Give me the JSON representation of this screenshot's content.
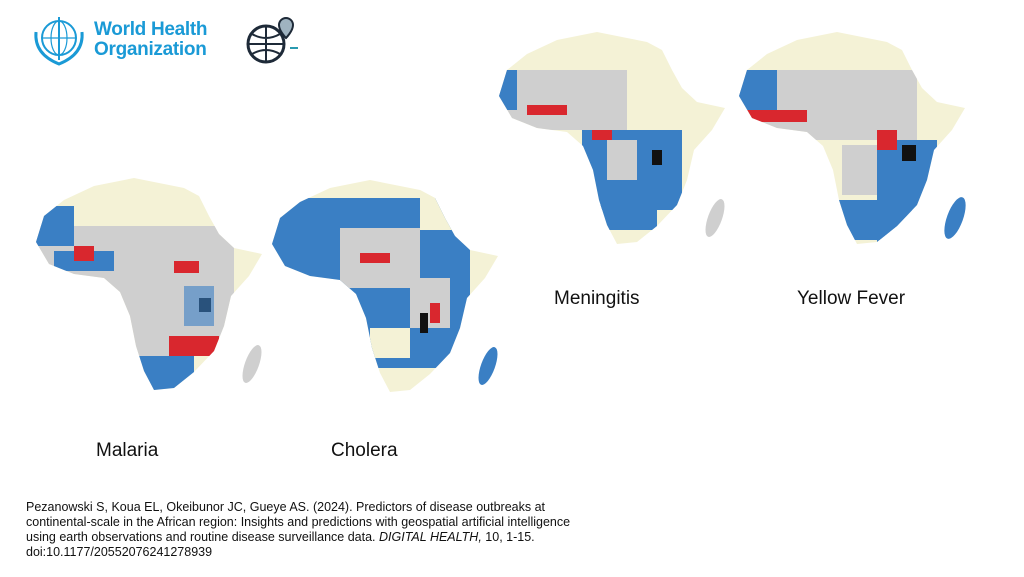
{
  "logos": {
    "who": {
      "line1": "World Health",
      "line2": "Organization",
      "color": "#1a9ad6"
    },
    "geo_ai": {
      "icon": "globe-pin-network-icon"
    }
  },
  "maps": [
    {
      "label": "Malaria"
    },
    {
      "label": "Cholera"
    },
    {
      "label": "Meningitis"
    },
    {
      "label": "Yellow Fever"
    }
  ],
  "colors": {
    "base": "#f4f2d6",
    "grey": "#cfcfcf",
    "blue": "#3a7fc4",
    "red": "#d9272e",
    "black": "#111111",
    "orange": "#e8b27a"
  },
  "citation": {
    "text": "Pezanowski S, Koua EL, Okeibunor JC, Gueye AS. (2024). Predictors of disease outbreaks at continental-scale in the African region: Insights and predictions with geospatial artificial intelligence using earth observations and routine disease surveillance data. ",
    "journal": "DIGITAL HEALTH,",
    "tail": " 10, 1-15. doi:10.1177/20552076241278939"
  }
}
